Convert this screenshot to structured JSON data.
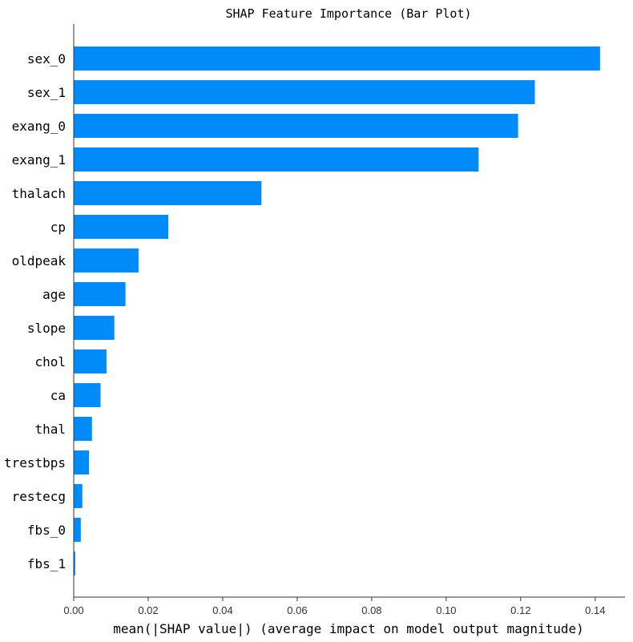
{
  "chart_data": {
    "type": "bar",
    "orientation": "horizontal",
    "title": "SHAP Feature Importance (Bar Plot)",
    "xlabel": "mean(|SHAP value|) (average impact on model output magnitude)",
    "ylabel": "",
    "xlim": [
      0,
      0.148
    ],
    "xticks": [
      "0.00",
      "0.02",
      "0.04",
      "0.06",
      "0.08",
      "0.10",
      "0.12",
      "0.14"
    ],
    "xtick_values": [
      0,
      0.02,
      0.04,
      0.06,
      0.08,
      0.1,
      0.12,
      0.14
    ],
    "bar_color": "#008bfb",
    "grid": false,
    "categories": [
      "sex_0",
      "sex_1",
      "exang_0",
      "exang_1",
      "thalach",
      "cp",
      "oldpeak",
      "age",
      "slope",
      "chol",
      "ca",
      "thal",
      "trestbps",
      "restecg",
      "fbs_0",
      "fbs_1"
    ],
    "values": [
      0.1413,
      0.1238,
      0.1193,
      0.1087,
      0.0504,
      0.0254,
      0.0174,
      0.0139,
      0.0109,
      0.0088,
      0.0072,
      0.0049,
      0.0041,
      0.0023,
      0.0019,
      0.0004
    ]
  }
}
